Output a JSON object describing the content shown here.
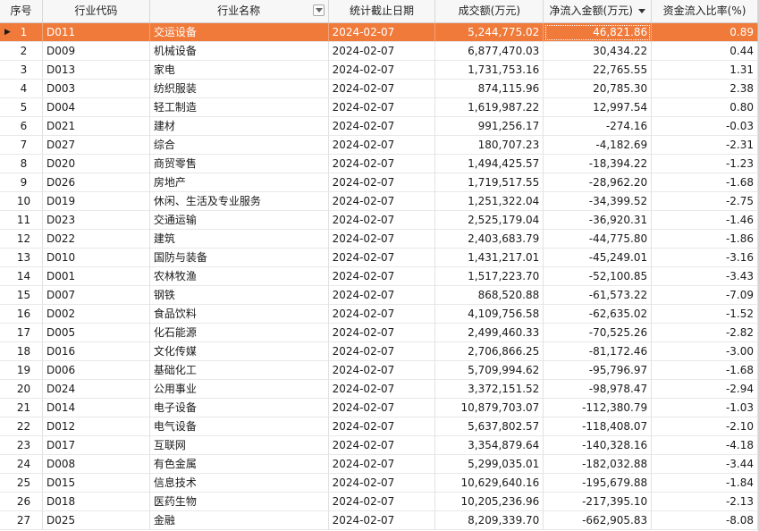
{
  "columns": [
    "序号",
    "行业代码",
    "行业名称",
    "统计截止日期",
    "成交额(万元)",
    "净流入金额(万元)",
    "资金流入比率(%)"
  ],
  "sort": {
    "column": "净流入金额(万元)",
    "direction": "descending"
  },
  "selected_row": 1,
  "rows": [
    {
      "idx": "1",
      "code": "D011",
      "name": "交运设备",
      "date": "2024-02-07",
      "turnover": "5,244,775.02",
      "net": "46,821.86",
      "ratio": "0.89"
    },
    {
      "idx": "2",
      "code": "D009",
      "name": "机械设备",
      "date": "2024-02-07",
      "turnover": "6,877,470.03",
      "net": "30,434.22",
      "ratio": "0.44"
    },
    {
      "idx": "3",
      "code": "D013",
      "name": "家电",
      "date": "2024-02-07",
      "turnover": "1,731,753.16",
      "net": "22,765.55",
      "ratio": "1.31"
    },
    {
      "idx": "4",
      "code": "D003",
      "name": "纺织服装",
      "date": "2024-02-07",
      "turnover": "874,115.96",
      "net": "20,785.30",
      "ratio": "2.38"
    },
    {
      "idx": "5",
      "code": "D004",
      "name": "轻工制造",
      "date": "2024-02-07",
      "turnover": "1,619,987.22",
      "net": "12,997.54",
      "ratio": "0.80"
    },
    {
      "idx": "6",
      "code": "D021",
      "name": "建材",
      "date": "2024-02-07",
      "turnover": "991,256.17",
      "net": "-274.16",
      "ratio": "-0.03"
    },
    {
      "idx": "7",
      "code": "D027",
      "name": "综合",
      "date": "2024-02-07",
      "turnover": "180,707.23",
      "net": "-4,182.69",
      "ratio": "-2.31"
    },
    {
      "idx": "8",
      "code": "D020",
      "name": "商贸零售",
      "date": "2024-02-07",
      "turnover": "1,494,425.57",
      "net": "-18,394.22",
      "ratio": "-1.23"
    },
    {
      "idx": "9",
      "code": "D026",
      "name": "房地产",
      "date": "2024-02-07",
      "turnover": "1,719,517.55",
      "net": "-28,962.20",
      "ratio": "-1.68"
    },
    {
      "idx": "10",
      "code": "D019",
      "name": "休闲、生活及专业服务",
      "date": "2024-02-07",
      "turnover": "1,251,322.04",
      "net": "-34,399.52",
      "ratio": "-2.75"
    },
    {
      "idx": "11",
      "code": "D023",
      "name": "交通运输",
      "date": "2024-02-07",
      "turnover": "2,525,179.04",
      "net": "-36,920.31",
      "ratio": "-1.46"
    },
    {
      "idx": "12",
      "code": "D022",
      "name": "建筑",
      "date": "2024-02-07",
      "turnover": "2,403,683.79",
      "net": "-44,775.80",
      "ratio": "-1.86"
    },
    {
      "idx": "13",
      "code": "D010",
      "name": "国防与装备",
      "date": "2024-02-07",
      "turnover": "1,431,217.01",
      "net": "-45,249.01",
      "ratio": "-3.16"
    },
    {
      "idx": "14",
      "code": "D001",
      "name": "农林牧渔",
      "date": "2024-02-07",
      "turnover": "1,517,223.70",
      "net": "-52,100.85",
      "ratio": "-3.43"
    },
    {
      "idx": "15",
      "code": "D007",
      "name": "钢铁",
      "date": "2024-02-07",
      "turnover": "868,520.88",
      "net": "-61,573.22",
      "ratio": "-7.09"
    },
    {
      "idx": "16",
      "code": "D002",
      "name": "食品饮料",
      "date": "2024-02-07",
      "turnover": "4,109,756.58",
      "net": "-62,635.02",
      "ratio": "-1.52"
    },
    {
      "idx": "17",
      "code": "D005",
      "name": "化石能源",
      "date": "2024-02-07",
      "turnover": "2,499,460.33",
      "net": "-70,525.26",
      "ratio": "-2.82"
    },
    {
      "idx": "18",
      "code": "D016",
      "name": "文化传媒",
      "date": "2024-02-07",
      "turnover": "2,706,866.25",
      "net": "-81,172.46",
      "ratio": "-3.00"
    },
    {
      "idx": "19",
      "code": "D006",
      "name": "基础化工",
      "date": "2024-02-07",
      "turnover": "5,709,994.62",
      "net": "-95,796.97",
      "ratio": "-1.68"
    },
    {
      "idx": "20",
      "code": "D024",
      "name": "公用事业",
      "date": "2024-02-07",
      "turnover": "3,372,151.52",
      "net": "-98,978.47",
      "ratio": "-2.94"
    },
    {
      "idx": "21",
      "code": "D014",
      "name": "电子设备",
      "date": "2024-02-07",
      "turnover": "10,879,703.07",
      "net": "-112,380.79",
      "ratio": "-1.03"
    },
    {
      "idx": "22",
      "code": "D012",
      "name": "电气设备",
      "date": "2024-02-07",
      "turnover": "5,637,802.57",
      "net": "-118,408.07",
      "ratio": "-2.10"
    },
    {
      "idx": "23",
      "code": "D017",
      "name": "互联网",
      "date": "2024-02-07",
      "turnover": "3,354,879.64",
      "net": "-140,328.16",
      "ratio": "-4.18"
    },
    {
      "idx": "24",
      "code": "D008",
      "name": "有色金属",
      "date": "2024-02-07",
      "turnover": "5,299,035.01",
      "net": "-182,032.88",
      "ratio": "-3.44"
    },
    {
      "idx": "25",
      "code": "D015",
      "name": "信息技术",
      "date": "2024-02-07",
      "turnover": "10,629,640.16",
      "net": "-195,679.88",
      "ratio": "-1.84"
    },
    {
      "idx": "26",
      "code": "D018",
      "name": "医药生物",
      "date": "2024-02-07",
      "turnover": "10,205,236.96",
      "net": "-217,395.10",
      "ratio": "-2.13"
    },
    {
      "idx": "27",
      "code": "D025",
      "name": "金融",
      "date": "2024-02-07",
      "turnover": "8,209,339.70",
      "net": "-662,905.83",
      "ratio": "-8.08"
    }
  ],
  "colors": {
    "selection": "#f07a3a",
    "header_bg": "#f7f7f7",
    "grid_line": "#e2e2e2"
  }
}
